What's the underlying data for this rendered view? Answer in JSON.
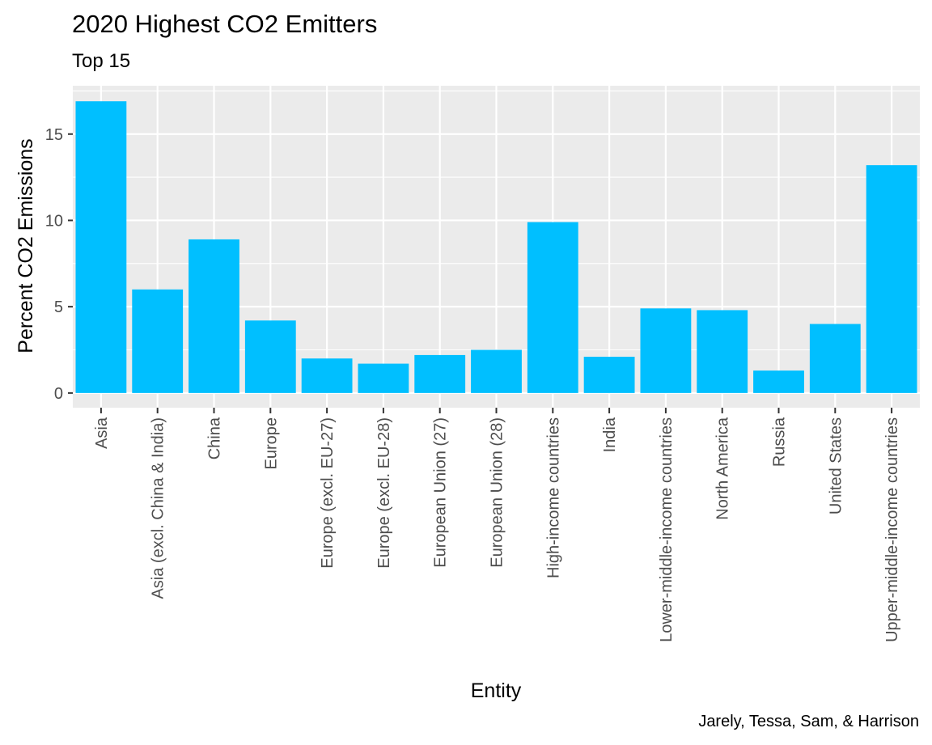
{
  "chart_data": {
    "type": "bar",
    "title": "2020 Highest CO2 Emitters",
    "subtitle": "Top 15",
    "caption": "Jarely, Tessa, Sam, & Harrison",
    "xlabel": "Entity",
    "ylabel": "Percent CO2 Emissions",
    "categories": [
      "Asia",
      "Asia (excl. China & India)",
      "China",
      "Europe",
      "Europe (excl. EU-27)",
      "Europe (excl. EU-28)",
      "European Union (27)",
      "European Union (28)",
      "High-income countries",
      "India",
      "Lower-middle-income countries",
      "North America",
      "Russia",
      "United States",
      "Upper-middle-income countries"
    ],
    "values": [
      16.9,
      6.0,
      8.9,
      4.2,
      2.0,
      1.7,
      2.2,
      2.5,
      9.9,
      2.1,
      4.9,
      4.8,
      1.3,
      4.0,
      13.2
    ],
    "y_ticks": [
      0,
      5,
      10,
      15
    ],
    "ylim": [
      -0.85,
      17.8
    ],
    "bar_color": "#00BFFF",
    "panel_background": "#EBEBEB",
    "grid_color": "#FFFFFF",
    "grid": true
  }
}
